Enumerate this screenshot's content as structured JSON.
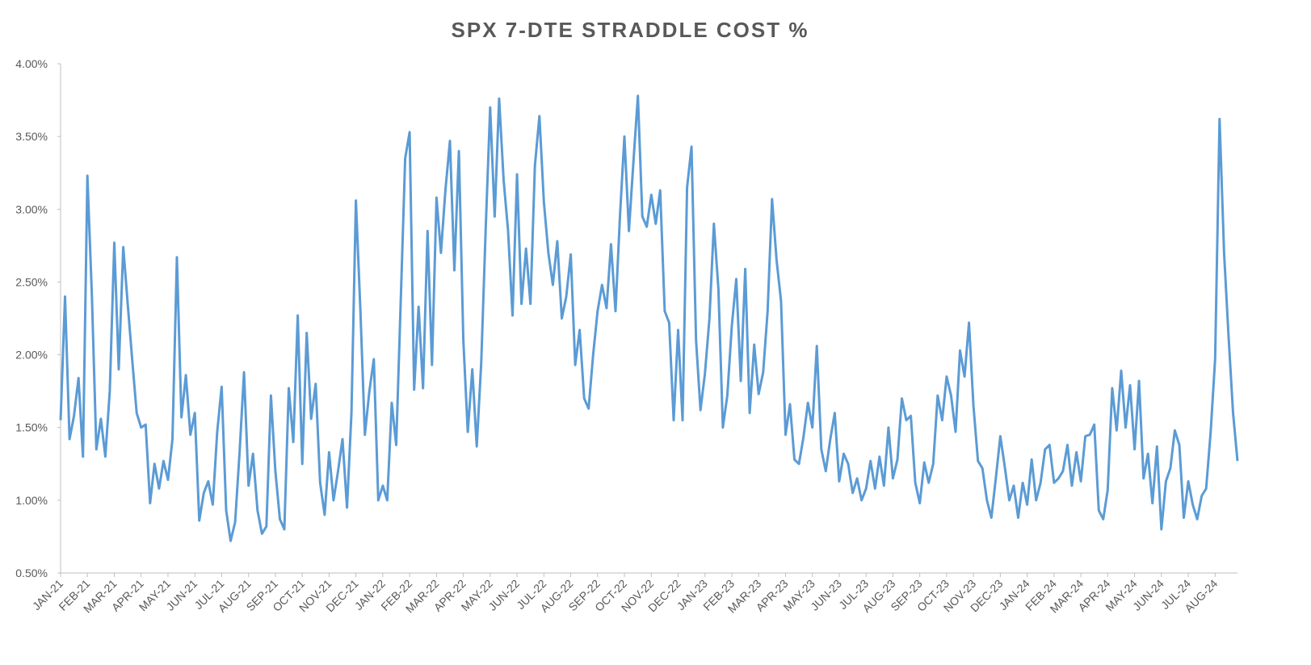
{
  "chart_data": {
    "type": "line",
    "title": "SPX 7-DTE STRADDLE COST %",
    "color": "#5b9bd5",
    "ylim": [
      0.5,
      4.0
    ],
    "yticks": [
      {
        "value": 0.5,
        "label": "0.50%"
      },
      {
        "value": 1.0,
        "label": "1.00%"
      },
      {
        "value": 1.5,
        "label": "1.50%"
      },
      {
        "value": 2.0,
        "label": "2.00%"
      },
      {
        "value": 2.5,
        "label": "2.50%"
      },
      {
        "value": 3.0,
        "label": "3.00%"
      },
      {
        "value": 3.5,
        "label": "3.50%"
      },
      {
        "value": 4.0,
        "label": "4.00%"
      }
    ],
    "categories": [
      "JAN-21",
      null,
      null,
      null,
      null,
      null,
      "FEB-21",
      null,
      null,
      null,
      null,
      null,
      "MAR-21",
      null,
      null,
      null,
      null,
      null,
      "APR-21",
      null,
      null,
      null,
      null,
      null,
      "MAY-21",
      null,
      null,
      null,
      null,
      null,
      "JUN-21",
      null,
      null,
      null,
      null,
      null,
      "JUL-21",
      null,
      null,
      null,
      null,
      null,
      "AUG-21",
      null,
      null,
      null,
      null,
      null,
      "SEP-21",
      null,
      null,
      null,
      null,
      null,
      "OCT-21",
      null,
      null,
      null,
      null,
      null,
      "NOV-21",
      null,
      null,
      null,
      null,
      null,
      "DEC-21",
      null,
      null,
      null,
      null,
      null,
      "JAN-22",
      null,
      null,
      null,
      null,
      null,
      "FEB-22",
      null,
      null,
      null,
      null,
      null,
      "MAR-22",
      null,
      null,
      null,
      null,
      null,
      "APR-22",
      null,
      null,
      null,
      null,
      null,
      "MAY-22",
      null,
      null,
      null,
      null,
      null,
      "JUN-22",
      null,
      null,
      null,
      null,
      null,
      "JUL-22",
      null,
      null,
      null,
      null,
      null,
      "AUG-22",
      null,
      null,
      null,
      null,
      null,
      "SEP-22",
      null,
      null,
      null,
      null,
      null,
      "OCT-22",
      null,
      null,
      null,
      null,
      null,
      "NOV-22",
      null,
      null,
      null,
      null,
      null,
      "DEC-22",
      null,
      null,
      null,
      null,
      null,
      "JAN-23",
      null,
      null,
      null,
      null,
      null,
      "FEB-23",
      null,
      null,
      null,
      null,
      null,
      "MAR-23",
      null,
      null,
      null,
      null,
      null,
      "APR-23",
      null,
      null,
      null,
      null,
      null,
      "MAY-23",
      null,
      null,
      null,
      null,
      null,
      "JUN-23",
      null,
      null,
      null,
      null,
      null,
      "JUL-23",
      null,
      null,
      null,
      null,
      null,
      "AUG-23",
      null,
      null,
      null,
      null,
      null,
      "SEP-23",
      null,
      null,
      null,
      null,
      null,
      "OCT-23",
      null,
      null,
      null,
      null,
      null,
      "NOV-23",
      null,
      null,
      null,
      null,
      null,
      "DEC-23",
      null,
      null,
      null,
      null,
      null,
      "JAN-24",
      null,
      null,
      null,
      null,
      null,
      "FEB-24",
      null,
      null,
      null,
      null,
      null,
      "MAR-24",
      null,
      null,
      null,
      null,
      null,
      "APR-24",
      null,
      null,
      null,
      null,
      null,
      "MAY-24",
      null,
      null,
      null,
      null,
      null,
      "JUN-24",
      null,
      null,
      null,
      null,
      null,
      "JUL-24",
      null,
      null,
      null,
      null,
      null,
      "AUG-24",
      null,
      null,
      null,
      null,
      null
    ],
    "values": [
      1.55,
      2.4,
      1.42,
      1.58,
      1.84,
      1.3,
      3.23,
      2.4,
      1.35,
      1.56,
      1.3,
      1.75,
      2.77,
      1.9,
      2.74,
      2.35,
      1.97,
      1.6,
      1.5,
      1.52,
      0.98,
      1.25,
      1.08,
      1.27,
      1.14,
      1.42,
      2.67,
      1.57,
      1.86,
      1.45,
      1.6,
      0.86,
      1.05,
      1.13,
      0.97,
      1.47,
      1.78,
      0.93,
      0.72,
      0.85,
      1.33,
      1.88,
      1.1,
      1.32,
      0.93,
      0.77,
      0.82,
      1.72,
      1.2,
      0.87,
      0.8,
      1.77,
      1.4,
      2.27,
      1.25,
      2.15,
      1.56,
      1.8,
      1.12,
      0.9,
      1.33,
      1.0,
      1.2,
      1.42,
      0.95,
      1.6,
      3.06,
      2.3,
      1.45,
      1.75,
      1.97,
      1.0,
      1.1,
      1.0,
      1.67,
      1.38,
      2.35,
      3.35,
      3.53,
      1.76,
      2.33,
      1.77,
      2.85,
      1.93,
      3.08,
      2.7,
      3.13,
      3.47,
      2.58,
      3.4,
      2.1,
      1.47,
      1.9,
      1.37,
      1.95,
      2.87,
      3.7,
      2.95,
      3.76,
      3.2,
      2.85,
      2.27,
      3.24,
      2.35,
      2.73,
      2.35,
      3.3,
      3.64,
      3.05,
      2.7,
      2.48,
      2.78,
      2.25,
      2.4,
      2.69,
      1.93,
      2.17,
      1.7,
      1.63,
      2.0,
      2.3,
      2.48,
      2.32,
      2.76,
      2.3,
      2.95,
      3.5,
      2.85,
      3.32,
      3.78,
      2.95,
      2.88,
      3.1,
      2.9,
      3.13,
      2.3,
      2.22,
      1.55,
      2.17,
      1.55,
      3.15,
      3.43,
      2.1,
      1.62,
      1.87,
      2.25,
      2.9,
      2.45,
      1.5,
      1.72,
      2.2,
      2.52,
      1.82,
      2.59,
      1.6,
      2.07,
      1.73,
      1.88,
      2.3,
      3.07,
      2.65,
      2.37,
      1.45,
      1.66,
      1.28,
      1.25,
      1.43,
      1.67,
      1.5,
      2.06,
      1.35,
      1.2,
      1.42,
      1.6,
      1.13,
      1.32,
      1.25,
      1.05,
      1.15,
      1.0,
      1.08,
      1.27,
      1.08,
      1.3,
      1.1,
      1.5,
      1.15,
      1.28,
      1.7,
      1.55,
      1.58,
      1.12,
      0.98,
      1.26,
      1.12,
      1.25,
      1.72,
      1.55,
      1.85,
      1.72,
      1.47,
      2.03,
      1.85,
      2.22,
      1.65,
      1.27,
      1.22,
      1.0,
      0.88,
      1.15,
      1.44,
      1.23,
      1.0,
      1.1,
      0.88,
      1.12,
      0.97,
      1.28,
      1.0,
      1.12,
      1.35,
      1.38,
      1.12,
      1.15,
      1.2,
      1.38,
      1.1,
      1.33,
      1.13,
      1.44,
      1.45,
      1.52,
      0.93,
      0.87,
      1.07,
      1.77,
      1.48,
      1.89,
      1.5,
      1.79,
      1.35,
      1.82,
      1.15,
      1.32,
      0.98,
      1.37,
      0.8,
      1.13,
      1.22,
      1.48,
      1.38,
      0.88,
      1.13,
      0.97,
      0.87,
      1.03,
      1.08,
      1.47,
      1.97,
      3.62,
      2.7,
      2.13,
      1.6,
      1.27
    ]
  }
}
